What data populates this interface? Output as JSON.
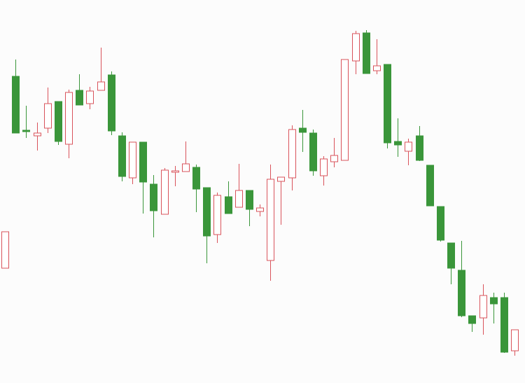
{
  "chart_data": {
    "type": "candlestick",
    "ylim": [
      0,
      547
    ],
    "up_color": "#d9535b",
    "down_color": "#3a963a",
    "open": [
      164,
      438,
      361,
      353,
      364,
      402,
      341,
      418,
      399,
      418,
      440,
      353,
      293,
      344,
      284,
      241,
      301,
      302,
      308,
      279,
      212,
      266,
      251,
      275,
      245,
      175,
      288,
      293,
      364,
      357,
      296,
      316,
      318,
      460,
      500,
      446,
      455,
      345,
      331,
      353,
      311,
      252,
      200,
      161,
      96,
      93,
      122,
      122,
      46
    ],
    "high": [
      216,
      462,
      396,
      372,
      422,
      402,
      419,
      441,
      423,
      479,
      445,
      358,
      344,
      344,
      297,
      307,
      310,
      345,
      312,
      279,
      272,
      288,
      313,
      275,
      255,
      312,
      294,
      368,
      390,
      362,
      324,
      350,
      462,
      503,
      504,
      491,
      455,
      378,
      349,
      367,
      311,
      252,
      200,
      203,
      96,
      141,
      129,
      129,
      76
    ],
    "low": [
      164,
      357,
      350,
      332,
      357,
      340,
      321,
      397,
      391,
      418,
      354,
      288,
      284,
      242,
      208,
      241,
      281,
      302,
      244,
      171,
      200,
      242,
      251,
      224,
      238,
      146,
      226,
      275,
      330,
      296,
      282,
      308,
      318,
      441,
      442,
      441,
      335,
      323,
      311,
      317,
      253,
      202,
      141,
      94,
      73,
      69,
      85,
      43,
      39
    ],
    "close": [
      216,
      357,
      359,
      357,
      399,
      345,
      415,
      397,
      417,
      430,
      360,
      295,
      344,
      287,
      246,
      304,
      303,
      313,
      277,
      210,
      268,
      242,
      275,
      248,
      250,
      291,
      294,
      362,
      358,
      303,
      320,
      325,
      462,
      499,
      442,
      453,
      343,
      340,
      344,
      318,
      253,
      204,
      164,
      96,
      85,
      125,
      113,
      44,
      76
    ]
  }
}
